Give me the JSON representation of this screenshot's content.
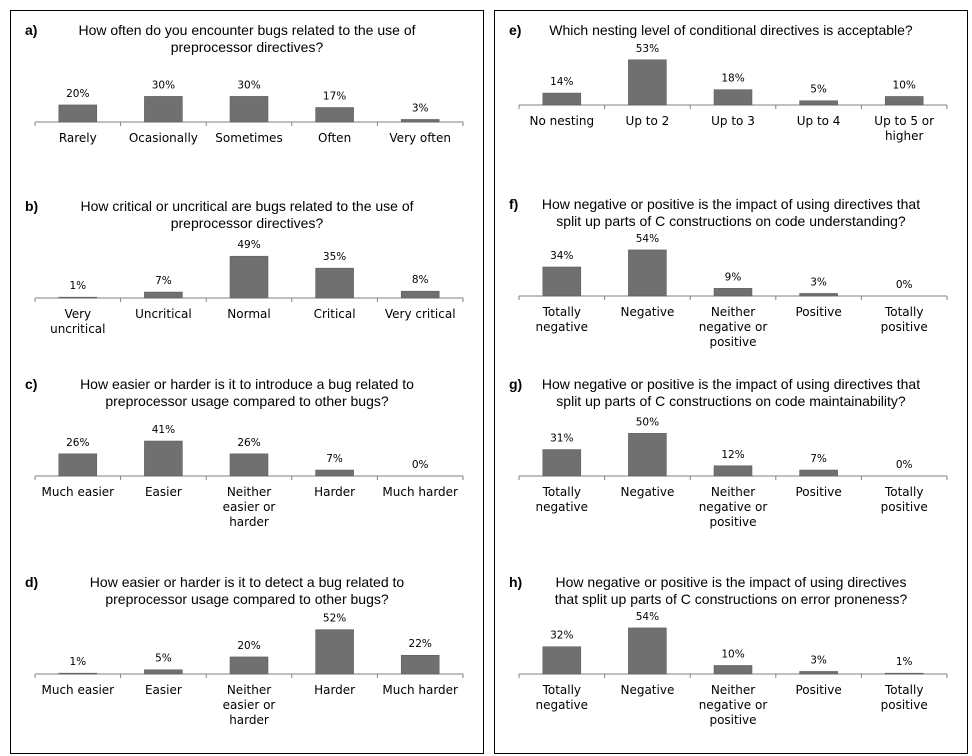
{
  "chart_data": [
    {
      "id": "a",
      "type": "bar",
      "letter": "a)",
      "title_lines": [
        "How often do you encounter bugs related to the use of",
        "preprocessor directives?"
      ],
      "categories": [
        "Rarely",
        "Ocasionally",
        "Sometimes",
        "Often",
        "Very often"
      ],
      "values": [
        20,
        30,
        30,
        17,
        3
      ],
      "value_labels": [
        "20%",
        "30%",
        "30%",
        "17%",
        "3%"
      ]
    },
    {
      "id": "b",
      "type": "bar",
      "letter": "b)",
      "title_lines": [
        "How critical or uncritical are bugs related to the use of",
        "preprocessor directives?"
      ],
      "categories": [
        "Very uncritical",
        "Uncritical",
        "Normal",
        "Critical",
        "Very critical"
      ],
      "values": [
        1,
        7,
        49,
        35,
        8
      ],
      "value_labels": [
        "1%",
        "7%",
        "49%",
        "35%",
        "8%"
      ]
    },
    {
      "id": "c",
      "type": "bar",
      "letter": "c)",
      "title_lines": [
        "How easier or harder is it to introduce a bug related to",
        "preprocessor usage compared to other bugs?"
      ],
      "categories": [
        "Much easier",
        "Easier",
        "Neither easier or harder",
        "Harder",
        "Much harder"
      ],
      "values": [
        26,
        41,
        26,
        7,
        0
      ],
      "value_labels": [
        "26%",
        "41%",
        "26%",
        "7%",
        "0%"
      ]
    },
    {
      "id": "d",
      "type": "bar",
      "letter": "d)",
      "title_lines": [
        "How easier or harder is it to detect a bug related to",
        "preprocessor usage compared to other bugs?"
      ],
      "categories": [
        "Much easier",
        "Easier",
        "Neither easier or harder",
        "Harder",
        "Much harder"
      ],
      "values": [
        1,
        5,
        20,
        52,
        22
      ],
      "value_labels": [
        "1%",
        "5%",
        "20%",
        "52%",
        "22%"
      ]
    },
    {
      "id": "e",
      "type": "bar",
      "letter": "e)",
      "title_lines": [
        "Which nesting level of conditional directives is acceptable?"
      ],
      "categories": [
        "No nesting",
        "Up to 2",
        "Up to 3",
        "Up to 4",
        "Up to 5 or higher"
      ],
      "values": [
        14,
        53,
        18,
        5,
        10
      ],
      "value_labels": [
        "14%",
        "53%",
        "18%",
        "5%",
        "10%"
      ]
    },
    {
      "id": "f",
      "type": "bar",
      "letter": "f)",
      "title_lines": [
        "How negative or positive is the impact of using directives that",
        "split up parts of C constructions on code understanding?"
      ],
      "categories": [
        "Totally negative",
        "Negative",
        "Neither negative or positive",
        "Positive",
        "Totally positive"
      ],
      "values": [
        34,
        54,
        9,
        3,
        0
      ],
      "value_labels": [
        "34%",
        "54%",
        "9%",
        "3%",
        "0%"
      ]
    },
    {
      "id": "g",
      "type": "bar",
      "letter": "g)",
      "title_lines": [
        "How negative or positive is the impact of using directives that",
        "split up parts of C constructions on code maintainability?"
      ],
      "categories": [
        "Totally negative",
        "Negative",
        "Neither negative or positive",
        "Positive",
        "Totally positive"
      ],
      "values": [
        31,
        50,
        12,
        7,
        0
      ],
      "value_labels": [
        "31%",
        "50%",
        "12%",
        "7%",
        "0%"
      ]
    },
    {
      "id": "h",
      "type": "bar",
      "letter": "h)",
      "title_lines": [
        "How negative or positive is the impact of using directives",
        "that split up parts of C constructions on error proneness?"
      ],
      "categories": [
        "Totally negative",
        "Negative",
        "Neither negative or positive",
        "Positive",
        "Totally positive"
      ],
      "values": [
        32,
        54,
        10,
        3,
        1
      ],
      "value_labels": [
        "32%",
        "54%",
        "10%",
        "3%",
        "1%"
      ]
    }
  ]
}
